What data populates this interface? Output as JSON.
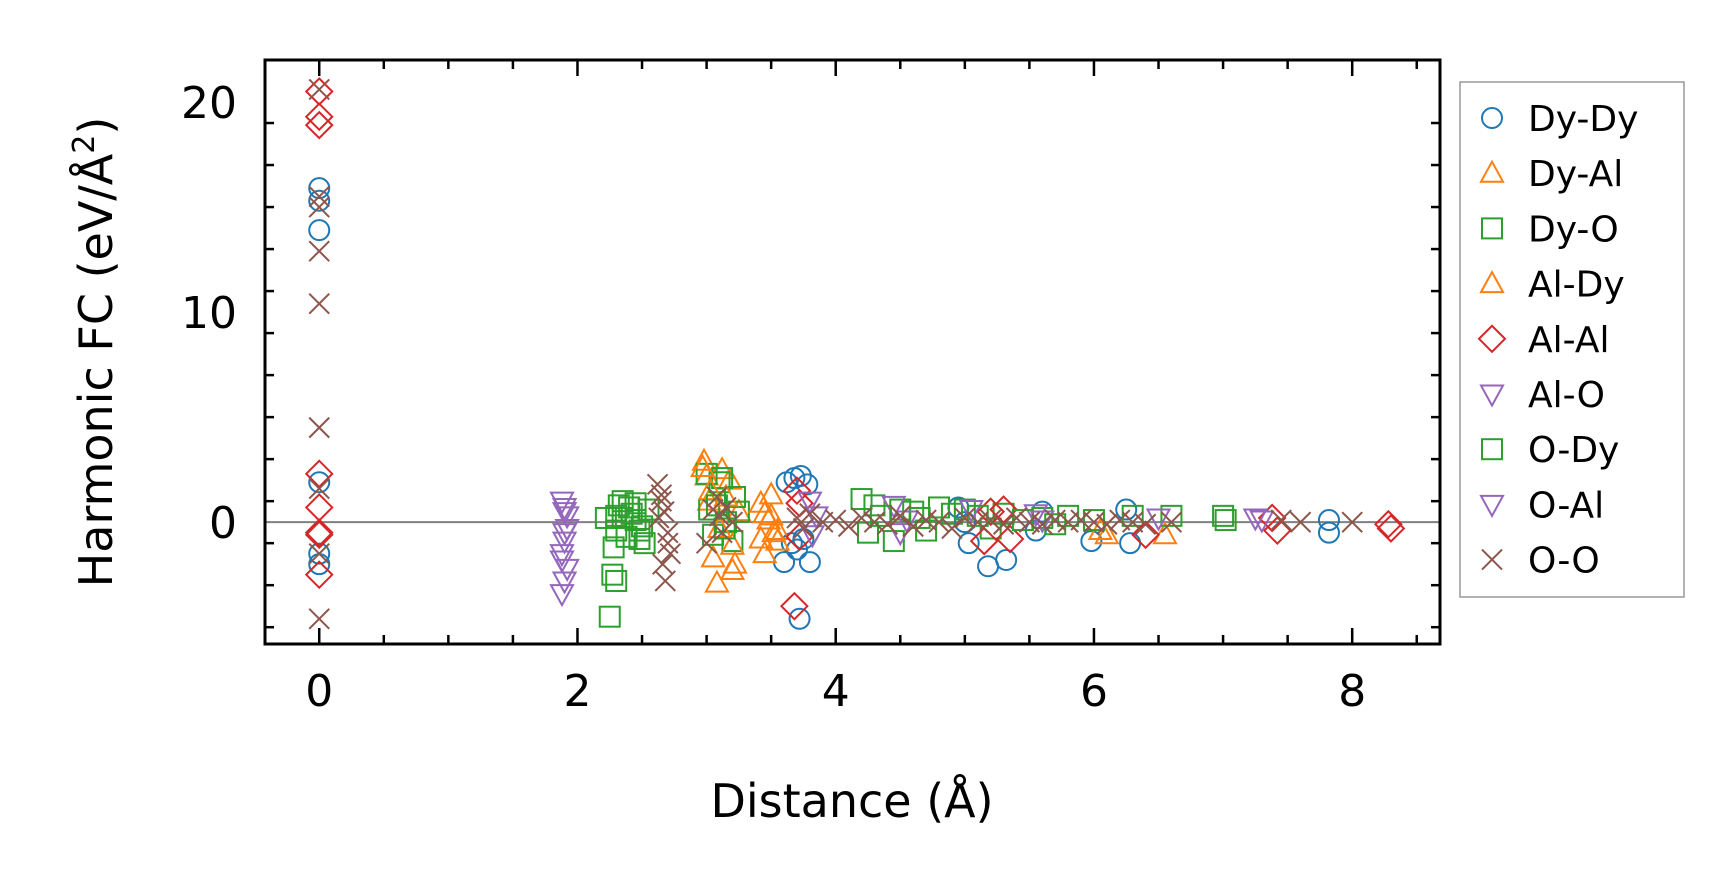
{
  "chart_data": {
    "type": "scatter",
    "xlabel": "Distance (Å)",
    "ylabel_main": "Harmonic FC (eV/Å",
    "ylabel_sup": "2",
    "ylabel_end": ")",
    "xlim": [
      -0.42,
      8.68
    ],
    "ylim": [
      -5.8,
      22.0
    ],
    "xticks": [
      0,
      2,
      4,
      6,
      8
    ],
    "yticks": [
      0,
      10,
      20
    ],
    "xtick_labels": [
      "0",
      "2",
      "4",
      "6",
      "8"
    ],
    "ytick_labels": [
      "0",
      "10",
      "20"
    ],
    "grid": false,
    "zero_line": true,
    "legend_position": "outside-right",
    "series": [
      {
        "name": "Dy-Dy",
        "marker": "circle",
        "color": "#1f77b4",
        "x": [
          0,
          0,
          0,
          0,
          0,
          0,
          3.62,
          3.68,
          3.73,
          3.78,
          3.66,
          3.7,
          3.72,
          3.6,
          3.75,
          3.8,
          4.95,
          5.0,
          5.03,
          5.18,
          5.32,
          5.55,
          5.6,
          5.98,
          6.25,
          6.28,
          7.82,
          7.82
        ],
        "y": [
          15.9,
          15.3,
          13.9,
          1.9,
          -1.5,
          -2.0,
          1.9,
          2.1,
          2.2,
          1.8,
          -1.0,
          -1.3,
          -4.6,
          -1.9,
          -0.8,
          -1.9,
          0.7,
          0.0,
          -1.0,
          -2.1,
          -1.8,
          -0.4,
          0.5,
          -0.9,
          0.6,
          -1.0,
          0.1,
          -0.5
        ]
      },
      {
        "name": "Dy-Al",
        "marker": "triangle-up",
        "color": "#ff7f0e",
        "x": [
          2.98,
          3.0,
          3.02,
          3.05,
          3.08,
          3.12,
          3.18,
          3.2,
          3.22,
          3.25,
          3.42,
          3.45,
          3.5,
          3.5,
          3.52,
          3.55,
          3.45,
          6.1,
          6.55
        ],
        "y": [
          2.9,
          2.2,
          1.0,
          -1.7,
          -2.9,
          2.5,
          2.0,
          -2.3,
          -2.0,
          0.5,
          -0.8,
          -1.5,
          1.3,
          0.3,
          -0.5,
          -0.9,
          0.4,
          -0.6,
          -0.6
        ]
      },
      {
        "name": "Dy-O",
        "marker": "square",
        "color": "#2ca02c",
        "x": [
          2.25,
          2.27,
          2.3,
          2.32,
          2.35,
          2.28,
          2.3,
          2.38,
          2.42,
          2.45,
          2.48,
          2.52,
          2.55,
          2.45,
          2.48,
          2.35,
          3.0,
          3.02,
          3.05,
          3.1,
          3.12,
          3.15,
          3.2,
          3.22,
          3.25,
          4.2,
          4.25,
          4.3,
          4.45,
          4.5,
          4.6,
          4.7,
          4.8,
          4.9,
          5.0,
          5.2,
          5.3,
          5.6,
          5.7,
          5.8,
          6.3,
          6.6,
          7.0
        ],
        "y": [
          -4.5,
          -2.5,
          -2.8,
          0.8,
          1.0,
          -1.2,
          0.3,
          -0.7,
          0.4,
          0.9,
          -0.4,
          -1.0,
          0.6,
          0.1,
          -0.8,
          0.2,
          2.3,
          0.6,
          -0.6,
          1.9,
          2.1,
          0.0,
          -0.9,
          1.2,
          0.5,
          1.1,
          -0.5,
          0.8,
          -0.9,
          0.6,
          0.5,
          -0.4,
          0.7,
          0.4,
          0.6,
          -0.3,
          0.4,
          0.2,
          -0.1,
          0.3,
          0.3,
          0.3,
          0.3
        ]
      },
      {
        "name": "Al-Dy",
        "marker": "triangle-up",
        "color": "#ff7f0e",
        "x": [
          2.97,
          3.03,
          3.1,
          3.15,
          3.2,
          3.42,
          3.48,
          3.55,
          6.05
        ],
        "y": [
          2.6,
          1.5,
          -0.3,
          1.2,
          -1.1,
          0.9,
          0.1,
          -0.4,
          -0.4
        ]
      },
      {
        "name": "Al-Al",
        "marker": "diamond",
        "color": "#d62728",
        "x": [
          0,
          0,
          0,
          0,
          0,
          0,
          0,
          0,
          3.68,
          3.7,
          3.72,
          3.72,
          5.15,
          5.2,
          5.3,
          5.35,
          6.4,
          7.38,
          7.42,
          8.28,
          8.3
        ],
        "y": [
          20.5,
          19.3,
          18.9,
          2.3,
          0.7,
          -0.5,
          -0.6,
          -2.5,
          -4.0,
          1.5,
          -0.7,
          0.9,
          -0.9,
          0.5,
          0.6,
          -0.8,
          -0.6,
          0.2,
          -0.4,
          -0.1,
          -0.3
        ]
      },
      {
        "name": "Al-O",
        "marker": "triangle-down",
        "color": "#9467bd",
        "x": [
          1.88,
          1.9,
          1.92,
          1.9,
          1.88,
          1.92,
          1.9,
          1.88,
          1.9,
          3.8,
          3.82,
          4.45,
          4.5,
          5.05,
          5.55,
          6.5,
          7.25
        ],
        "y": [
          1.0,
          0.7,
          0.3,
          -0.5,
          -1.5,
          -2.2,
          -2.8,
          -3.4,
          -0.9,
          1.0,
          -0.6,
          0.8,
          -0.5,
          0.6,
          0.4,
          0.2,
          0.2
        ]
      },
      {
        "name": "O-Dy",
        "marker": "square",
        "color": "#2ca02c",
        "x": [
          2.22,
          2.3,
          2.4,
          2.5,
          3.08,
          3.14,
          4.35,
          4.65,
          5.1,
          5.45,
          6.0,
          7.02
        ],
        "y": [
          0.2,
          -0.4,
          0.7,
          -0.2,
          0.8,
          -0.3,
          0.3,
          0.2,
          0.3,
          0.1,
          0.1,
          0.1
        ]
      },
      {
        "name": "O-Al",
        "marker": "triangle-down",
        "color": "#9467bd",
        "x": [
          1.9,
          1.92,
          1.88,
          3.85,
          4.55,
          5.6,
          7.3
        ],
        "y": [
          0.5,
          -0.3,
          -1.8,
          0.3,
          0.1,
          0.1,
          0.1
        ]
      },
      {
        "name": "O-O",
        "marker": "x",
        "color": "#8c564b",
        "x": [
          0,
          0,
          0,
          0,
          0,
          0,
          0,
          0,
          0,
          2.62,
          2.65,
          2.67,
          2.7,
          2.72,
          2.68,
          2.66,
          2.63,
          2.7,
          2.65,
          3.0,
          3.05,
          3.1,
          3.12,
          3.15,
          3.2,
          3.08,
          3.7,
          3.75,
          3.8,
          3.9,
          4.0,
          4.1,
          4.2,
          4.3,
          4.4,
          4.5,
          4.6,
          4.7,
          4.8,
          4.9,
          5.0,
          5.1,
          5.2,
          5.3,
          5.4,
          5.5,
          5.6,
          5.7,
          5.8,
          5.9,
          6.0,
          6.1,
          6.2,
          6.3,
          6.4,
          6.6,
          7.45,
          7.6,
          8.0
        ],
        "y": [
          20.6,
          15.5,
          12.9,
          10.4,
          4.5,
          1.6,
          -1.5,
          -4.6,
          15.0,
          1.8,
          1.0,
          0.5,
          -0.5,
          -1.5,
          -2.8,
          -2.0,
          0.2,
          -1.0,
          1.3,
          -1.0,
          0.6,
          0.3,
          -0.5,
          0.7,
          0.0,
          1.2,
          0.2,
          -0.3,
          0.4,
          0.0,
          0.1,
          -0.2,
          0.2,
          0.0,
          -0.1,
          0.3,
          -0.2,
          0.1,
          0.0,
          -0.3,
          0.2,
          0.0,
          0.1,
          -0.1,
          0.2,
          0.0,
          -0.1,
          0.1,
          0.0,
          0.1,
          0.0,
          -0.1,
          0.1,
          0.0,
          -0.1,
          0.0,
          0.1,
          0.0,
          0.0
        ]
      }
    ]
  }
}
